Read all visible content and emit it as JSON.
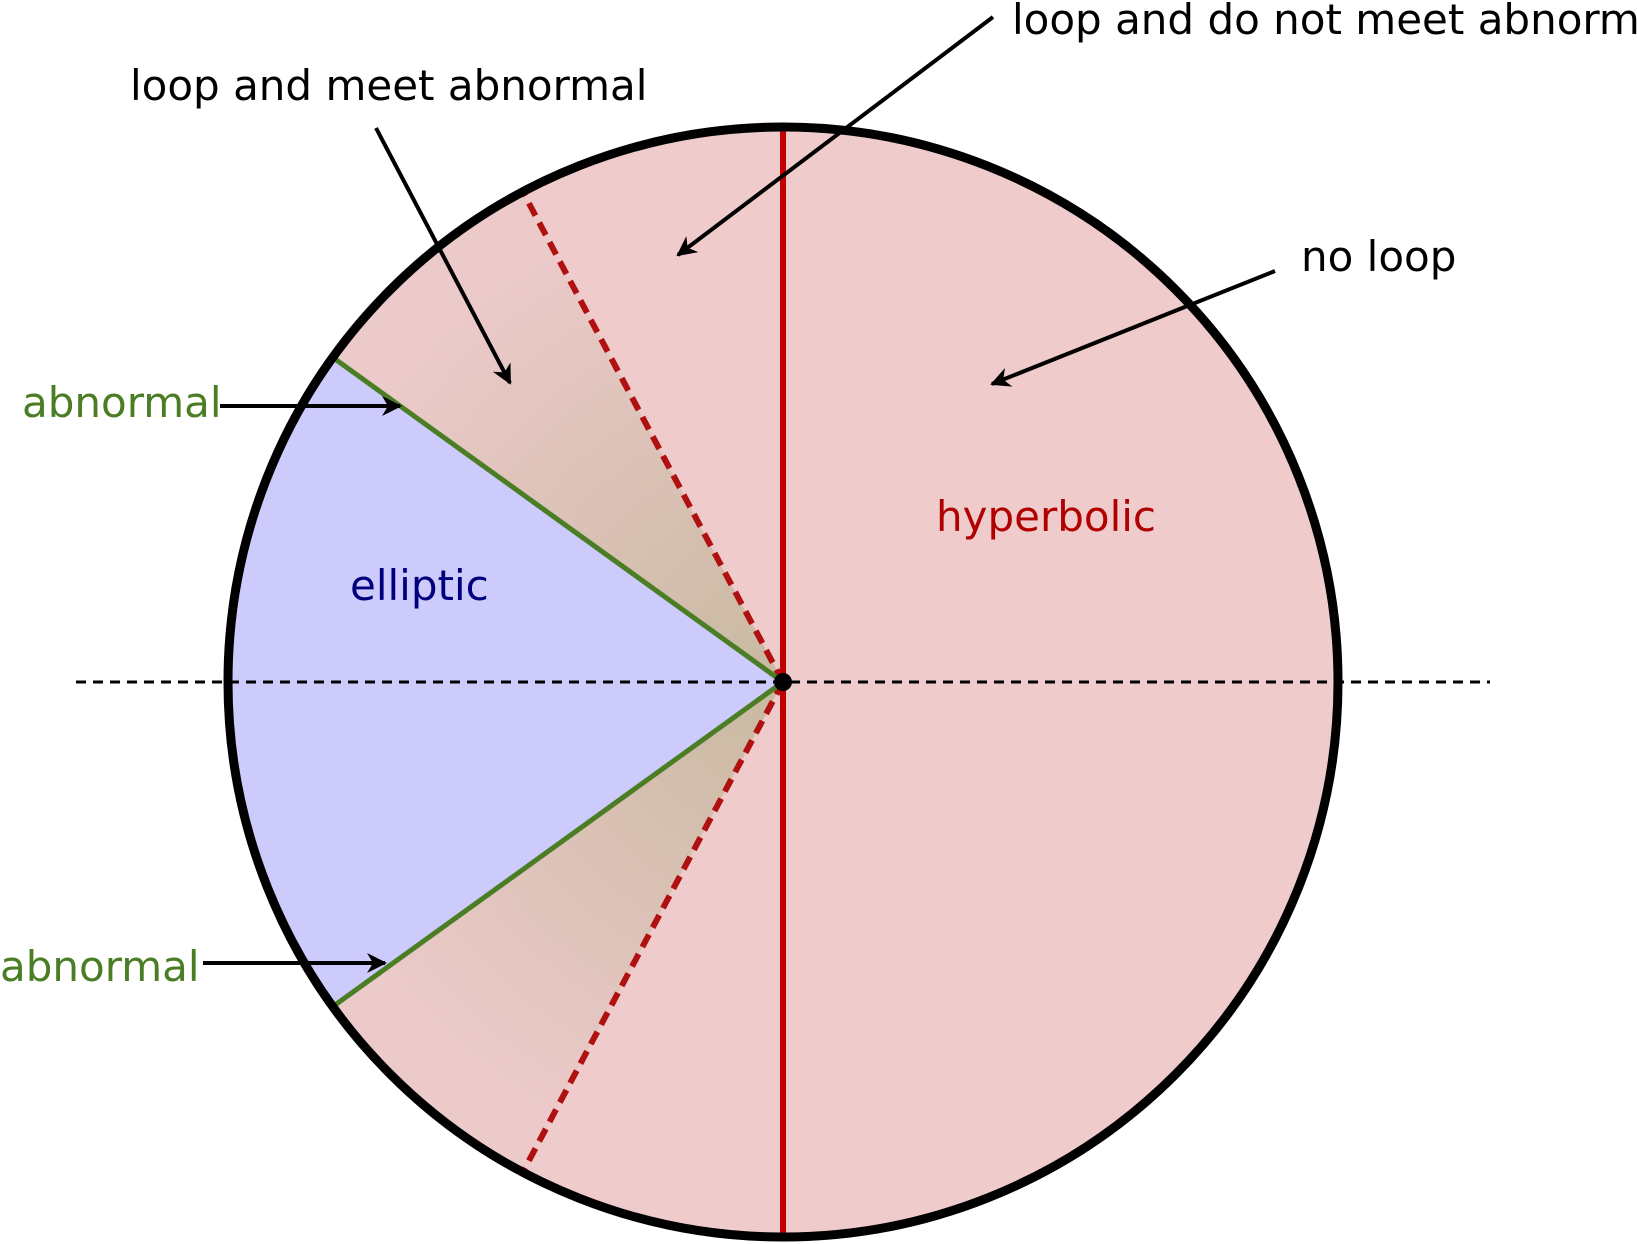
{
  "regions": {
    "elliptic": "elliptic",
    "hyperbolic": "hyperbolic"
  },
  "annotations": {
    "loop_meet_abnormal": "loop and meet abnormal",
    "loop_not_meet_abnormal": "loop and do not meet abnormal",
    "no_loop": "no loop",
    "abnormal_upper": "abnormal",
    "abnormal_lower": "abnormal"
  },
  "colors": {
    "hyperbolic_fill": "#f0cbcb",
    "elliptic_fill": "#cccbfb",
    "transition_fill": "#d9bfb0",
    "hyperbolic_text": "#b00000",
    "elliptic_text": "#00007f",
    "abnormal_green": "#4a7d24",
    "red_line": "#c00000",
    "dashed_red": "#b01010",
    "outline": "#000000"
  }
}
